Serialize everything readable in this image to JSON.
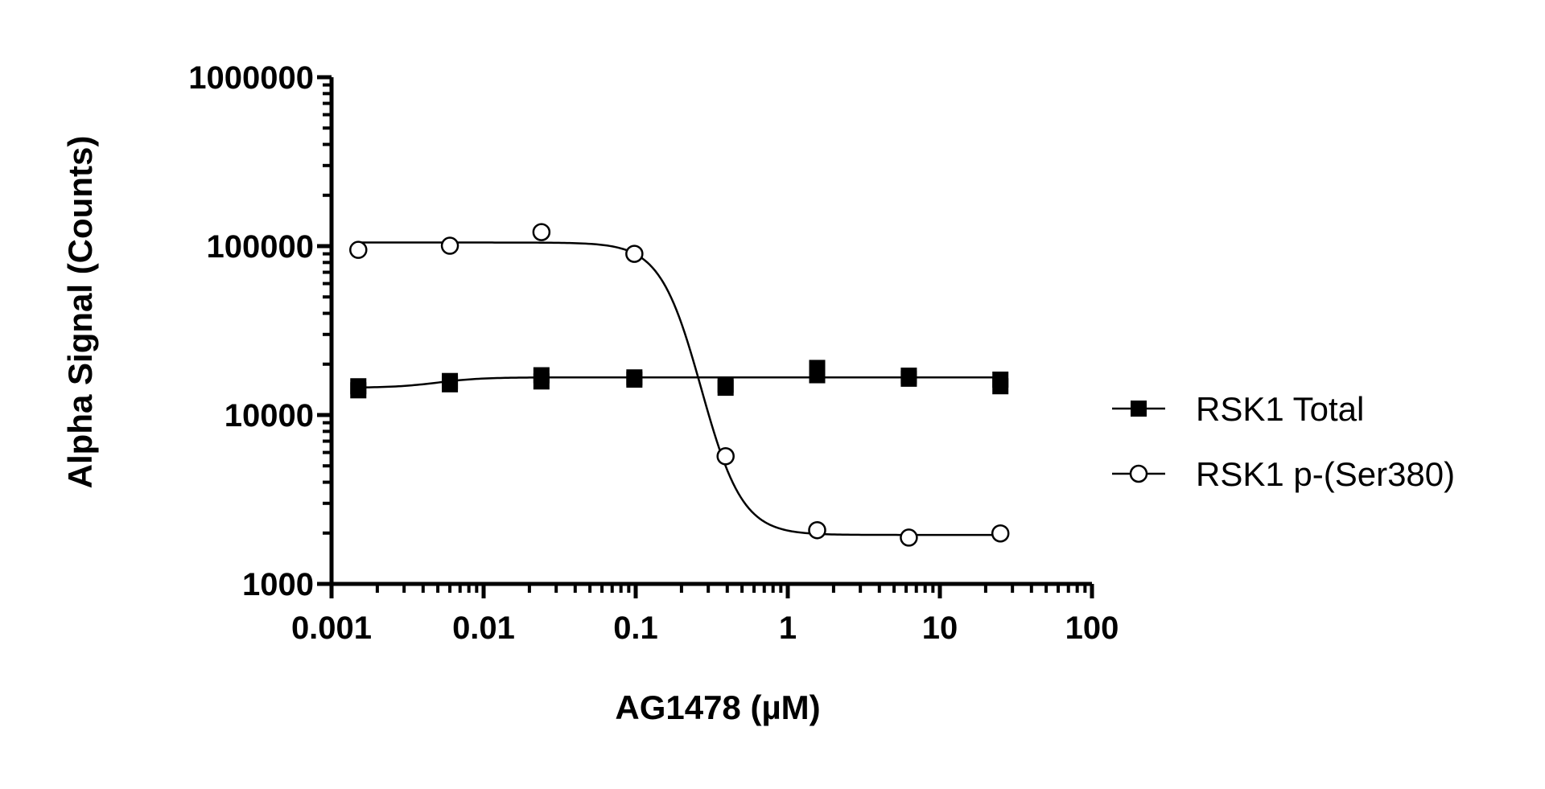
{
  "chart_data": {
    "type": "scatter",
    "xlabel": "AG1478 (µM)",
    "ylabel": "Alpha Signal (Counts)",
    "xscale": "log",
    "yscale": "log",
    "xlim": [
      0.001,
      100
    ],
    "ylim": [
      1000,
      1000000
    ],
    "x_ticks": [
      "0.001",
      "0.01",
      "0.1",
      "1",
      "10",
      "100"
    ],
    "y_ticks": [
      "1000",
      "10000",
      "100000",
      "1000000"
    ],
    "legend_position": "right",
    "grid": false,
    "series": [
      {
        "name": "RSK1 Total",
        "marker": "filled-square",
        "color": "#000000",
        "points": [
          {
            "x": 0.0015,
            "y": 14000
          },
          {
            "x": 0.0015,
            "y": 14800
          },
          {
            "x": 0.006,
            "y": 15200
          },
          {
            "x": 0.006,
            "y": 15900
          },
          {
            "x": 0.024,
            "y": 15800
          },
          {
            "x": 0.024,
            "y": 17200
          },
          {
            "x": 0.098,
            "y": 16200
          },
          {
            "x": 0.098,
            "y": 16700
          },
          {
            "x": 0.39,
            "y": 14500
          },
          {
            "x": 0.39,
            "y": 15100
          },
          {
            "x": 1.56,
            "y": 17200
          },
          {
            "x": 1.56,
            "y": 19000
          },
          {
            "x": 6.25,
            "y": 16400
          },
          {
            "x": 6.25,
            "y": 17100
          },
          {
            "x": 25,
            "y": 14800
          },
          {
            "x": 25,
            "y": 16200
          }
        ],
        "fit": {
          "bottom": 14500,
          "top": 16700,
          "ec50": 0.005,
          "hill": 3
        }
      },
      {
        "name": "RSK1 p-(Ser380)",
        "marker": "open-circle",
        "color": "#000000",
        "points": [
          {
            "x": 0.0015,
            "y": 95000
          },
          {
            "x": 0.006,
            "y": 100500
          },
          {
            "x": 0.024,
            "y": 121000
          },
          {
            "x": 0.098,
            "y": 90000
          },
          {
            "x": 0.39,
            "y": 5700
          },
          {
            "x": 1.56,
            "y": 2080
          },
          {
            "x": 6.25,
            "y": 1880
          },
          {
            "x": 25,
            "y": 1990
          }
        ],
        "fit": {
          "bottom": 1950,
          "top": 105000,
          "ec50": 0.27,
          "hill": 3.2
        }
      }
    ]
  }
}
